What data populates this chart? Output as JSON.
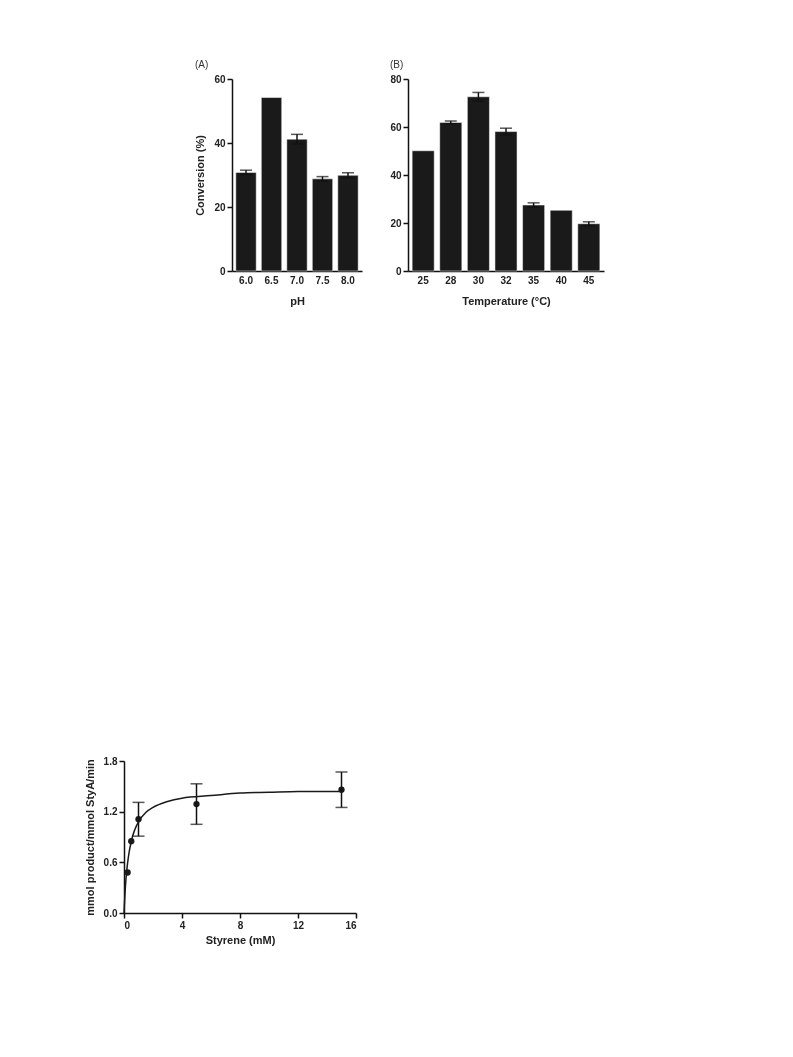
{
  "chart_data": [
    {
      "type": "bar",
      "title": "(A)",
      "xlabel": "pH",
      "ylabel": "Conversion (%)",
      "categories": [
        "6.0",
        "6.5",
        "7.0",
        "7.5",
        "8.0"
      ],
      "values": [
        30.8,
        54.2,
        41.2,
        28.8,
        29.9
      ],
      "errors": [
        0.7,
        null,
        1.5,
        0.7,
        0.8
      ],
      "color": "#1a1a1a",
      "ylim": [
        0,
        60
      ],
      "yticks": [
        0,
        20,
        40,
        60
      ]
    },
    {
      "type": "bar",
      "title": "(B)",
      "xlabel": "Temperature (°C)",
      "categories": [
        "25",
        "28",
        "30",
        "32",
        "35",
        "40",
        "45"
      ],
      "values": [
        50.1,
        61.9,
        72.6,
        58.1,
        27.5,
        25.3,
        19.7
      ],
      "errors": [
        null,
        0.6,
        1.8,
        1.4,
        0.9,
        null,
        0.8
      ],
      "color": "#1a1a1a",
      "ylim": [
        0,
        80
      ],
      "yticks": [
        0,
        20,
        40,
        60,
        80
      ]
    },
    {
      "type": "scatter",
      "xlabel": "Styrene (mM)",
      "ylabel": "mmol product/mmol StyA/min",
      "xlim": [
        0,
        16
      ],
      "xticks": [
        0,
        4,
        8,
        12,
        16
      ],
      "ylim": [
        0,
        1.8
      ],
      "yticks": [
        {
          "value": 0,
          "label": "0.0"
        },
        0.6,
        1.2,
        1.8
      ],
      "series": [
        {
          "type": "scatter",
          "marker": "circle",
          "color": "#1a1a1a",
          "x": [
            0.25,
            0.5,
            1,
            5,
            15
          ],
          "values": [
            0.48,
            0.85,
            1.11,
            1.29,
            1.46
          ],
          "errors": [
            null,
            null,
            0.2,
            0.24,
            0.21
          ]
        },
        {
          "type": "line",
          "color": "#1a1a1a",
          "x": [
            0,
            0.1,
            0.2,
            0.3,
            0.5,
            0.75,
            1,
            1.5,
            2,
            3,
            4,
            6,
            8,
            10,
            12,
            15
          ],
          "values": [
            0,
            0.32,
            0.52,
            0.66,
            0.85,
            0.99,
            1.08,
            1.19,
            1.25,
            1.32,
            1.36,
            1.39,
            1.42,
            1.43,
            1.44,
            1.44
          ]
        }
      ]
    }
  ]
}
